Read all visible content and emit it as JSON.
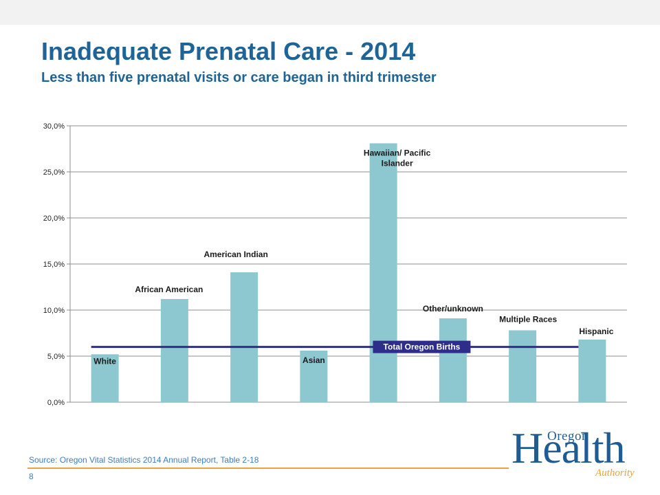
{
  "slide": {
    "title": "Inadequate Prenatal Care - 2014",
    "subtitle": "Less than five prenatal visits or care began in third trimester",
    "source": "Source: Oregon Vital Statistics 2014 Annual Report, Table 2-18",
    "page_number": "8"
  },
  "logo": {
    "line1": "Oregon",
    "line2": "Health",
    "line3": "Authority",
    "colors": {
      "primary": "#1f5c94",
      "accent": "#e8a33a"
    }
  },
  "colors": {
    "title": "#1f6496",
    "bar": "#8dc7cf",
    "reference_line": "#2e2e8a",
    "footer_line": "#e8a33a"
  },
  "chart_data": {
    "type": "bar",
    "title": "",
    "xlabel": "",
    "ylabel": "",
    "ylim": [
      0,
      30
    ],
    "yticks": [
      "0,0%",
      "5,0%",
      "10,0%",
      "15,0%",
      "20,0%",
      "25,0%",
      "30,0%"
    ],
    "ytick_values": [
      0,
      5,
      10,
      15,
      20,
      25,
      30
    ],
    "grid": true,
    "categories": [
      "White",
      "African American",
      "American Indian",
      "Asian",
      "Hawaiian/ Pacific Islander",
      "Other/unknown",
      "Multiple Races",
      "Hispanic"
    ],
    "values": [
      5.2,
      11.2,
      14.1,
      5.6,
      28.1,
      9.1,
      7.8,
      6.8
    ],
    "reference_line": {
      "label": "Total Oregon Births",
      "value": 6.0
    }
  }
}
